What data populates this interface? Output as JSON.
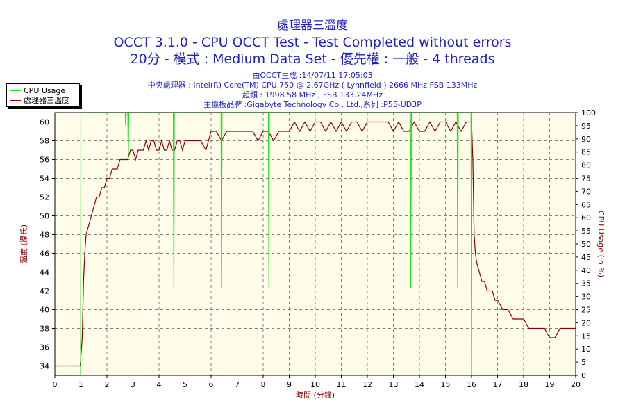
{
  "header": {
    "line1": "處理器三溫度",
    "line2": "OCCT 3.1.0 - CPU OCCT Test - Test Completed without errors",
    "line3": "20分 - 模式 : Medium Data Set - 優先權 : 一般 - 4 threads"
  },
  "info": {
    "generated": "由OCCT生成 :14/07/11 17:05:03",
    "cpu": "中央處理器 : Intel(R) Core(TM) CPU 750 @ 2.67GHz ( Lynnfield ) 2666 MHz FSB 133MHz",
    "clock": "超頻 : 1998.58 MHz ; FSB 133.24MHz",
    "board": "主機板品牌 :Gigabyte Technology Co., Ltd.,系列 :P55-UD3P"
  },
  "legend": {
    "cpu_usage": "CPU Usage",
    "temp": "處理器三溫度"
  },
  "colors": {
    "cpu_usage": "#22dd22",
    "temp": "#880000",
    "plot_bg": "#fffdea",
    "grid": "#808080",
    "left_axis_label": "#880000",
    "right_axis_label": "#880000"
  },
  "chart_data": {
    "type": "line",
    "xlabel": "時間 (分鐘)",
    "ylabel_left": "溫度 (攝氏)",
    "ylabel_right": "CPU Usage (in %)",
    "xlim": [
      0,
      20
    ],
    "ylim_left": [
      33,
      61
    ],
    "ylim_right": [
      0,
      100
    ],
    "x_ticks": [
      0,
      1,
      2,
      3,
      4,
      5,
      6,
      7,
      8,
      9,
      10,
      11,
      12,
      13,
      14,
      15,
      16,
      17,
      18,
      19,
      20
    ],
    "y_left_ticks": [
      34,
      36,
      38,
      40,
      42,
      44,
      46,
      48,
      50,
      52,
      54,
      56,
      58,
      60
    ],
    "y_right_ticks": [
      0,
      5,
      10,
      15,
      20,
      25,
      30,
      35,
      40,
      45,
      50,
      55,
      60,
      65,
      70,
      75,
      80,
      85,
      90,
      95,
      100
    ],
    "grid": true,
    "legend_position": "top-left",
    "series": [
      {
        "name": "處理器三溫度",
        "axis": "left",
        "x": [
          0,
          0.5,
          0.97,
          1.0,
          1.05,
          1.1,
          1.15,
          1.2,
          1.3,
          1.4,
          1.5,
          1.6,
          1.7,
          1.8,
          1.9,
          2.0,
          2.1,
          2.2,
          2.3,
          2.4,
          2.5,
          2.6,
          2.7,
          2.8,
          2.9,
          3.0,
          3.1,
          3.2,
          3.3,
          3.4,
          3.5,
          3.6,
          3.7,
          3.8,
          3.9,
          4.0,
          4.1,
          4.2,
          4.3,
          4.4,
          4.5,
          4.6,
          4.7,
          4.8,
          4.9,
          5.0,
          5.2,
          5.4,
          5.6,
          5.8,
          6.0,
          6.2,
          6.4,
          6.6,
          6.8,
          7.0,
          7.2,
          7.4,
          7.6,
          7.8,
          8.0,
          8.2,
          8.4,
          8.6,
          8.8,
          9.0,
          9.2,
          9.4,
          9.6,
          9.8,
          10.0,
          10.2,
          10.4,
          10.6,
          10.8,
          11.0,
          11.2,
          11.4,
          11.6,
          11.8,
          12.0,
          12.2,
          12.4,
          12.6,
          12.8,
          13.0,
          13.2,
          13.4,
          13.6,
          13.8,
          14.0,
          14.2,
          14.4,
          14.6,
          14.8,
          15.0,
          15.2,
          15.4,
          15.6,
          15.8,
          16.0,
          16.05,
          16.1,
          16.15,
          16.2,
          16.3,
          16.4,
          16.5,
          16.6,
          16.7,
          16.8,
          16.9,
          17.0,
          17.2,
          17.4,
          17.6,
          17.8,
          18.0,
          18.2,
          18.4,
          18.6,
          18.8,
          19.0,
          19.2,
          19.4,
          19.6,
          19.8,
          20.0
        ],
        "values": [
          34,
          34,
          34,
          35,
          37,
          43,
          46,
          48,
          49,
          50,
          51,
          52,
          52,
          53,
          53,
          54,
          54,
          55,
          55,
          55,
          56,
          56,
          56,
          56,
          57,
          57,
          56,
          57,
          57,
          57,
          58,
          57,
          58,
          58,
          57,
          57,
          58,
          57,
          57,
          58,
          57,
          57,
          58,
          58,
          57,
          58,
          58,
          58,
          58,
          57,
          59,
          59,
          58,
          59,
          59,
          59,
          59,
          59,
          59,
          58,
          59,
          59,
          58,
          59,
          59,
          59,
          60,
          59,
          60,
          59,
          60,
          60,
          59,
          60,
          59,
          60,
          59,
          60,
          60,
          59,
          60,
          60,
          60,
          60,
          60,
          59,
          60,
          59,
          59,
          60,
          59,
          59,
          60,
          59,
          60,
          60,
          59,
          60,
          59,
          60,
          60,
          56,
          48,
          46,
          45,
          44,
          43,
          43,
          42,
          42,
          42,
          41,
          41,
          40,
          40,
          39,
          39,
          39,
          38,
          38,
          38,
          38,
          37,
          37,
          38,
          38,
          38,
          38
        ],
        "color": "#880000"
      },
      {
        "name": "CPU Usage",
        "axis": "right",
        "x": [
          0,
          0.99,
          1.0,
          1.01,
          2.7,
          2.72,
          2.74,
          2.8,
          2.82,
          2.84,
          4.55,
          4.57,
          4.59,
          6.38,
          6.4,
          6.42,
          8.2,
          8.22,
          8.24,
          13.65,
          13.67,
          13.69,
          15.45,
          15.47,
          15.49,
          15.98,
          16.0,
          16.02,
          20.0
        ],
        "values": [
          0,
          0,
          100,
          100,
          100,
          95,
          100,
          100,
          83,
          100,
          100,
          33,
          100,
          100,
          33,
          100,
          100,
          33,
          100,
          100,
          33,
          100,
          100,
          33,
          100,
          100,
          0,
          0,
          0
        ],
        "color": "#22dd22"
      }
    ]
  }
}
